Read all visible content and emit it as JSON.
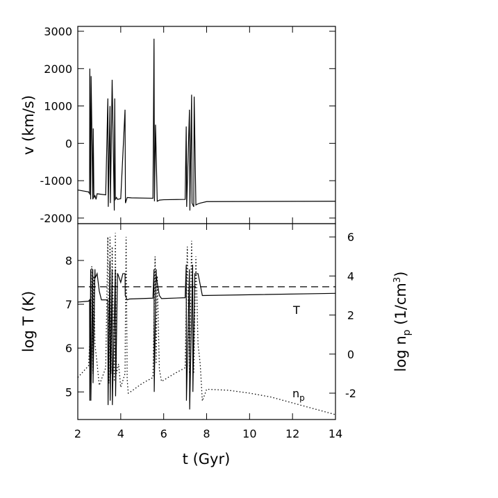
{
  "chart_data": [
    {
      "type": "line",
      "ylabel": "v (km/s)",
      "xlim": [
        2,
        14
      ],
      "xticks": [
        2,
        4,
        6,
        8,
        10,
        12,
        14
      ],
      "ylim": [
        -2150,
        3130
      ],
      "yticks": [
        -2000,
        -1000,
        0,
        1000,
        2000,
        3000
      ],
      "series": [
        {
          "color": "#000000",
          "linestyle": "solid",
          "x": [
            2,
            2.5,
            2.55,
            2.56,
            2.6,
            2.62,
            2.7,
            2.72,
            2.75,
            2.8,
            2.85,
            2.9,
            3.3,
            3.4,
            3.42,
            3.5,
            3.52,
            3.6,
            3.7,
            3.72,
            3.75,
            3.8,
            3.85,
            4.0,
            4.2,
            4.22,
            4.3,
            4.5,
            5.5,
            5.55,
            5.57,
            5.62,
            5.7,
            5.8,
            6.0,
            7.0,
            7.05,
            7.07,
            7.2,
            7.22,
            7.3,
            7.32,
            7.4,
            7.42,
            7.5,
            7.6,
            7.7,
            8,
            14
          ],
          "values": [
            -1250,
            -1300,
            -1350,
            2000,
            -1500,
            1800,
            -1500,
            400,
            -1450,
            -1400,
            -1500,
            -1350,
            -1380,
            1200,
            -1700,
            1000,
            -1600,
            1700,
            -1800,
            1200,
            -1500,
            -1450,
            -1500,
            -1480,
            900,
            -1600,
            -1450,
            -1460,
            -1470,
            2800,
            -1550,
            500,
            -1550,
            -1520,
            -1510,
            -1500,
            450,
            -1700,
            900,
            -1800,
            1300,
            -1600,
            -1700,
            1250,
            -1650,
            -1620,
            -1600,
            -1560,
            -1550
          ]
        }
      ]
    },
    {
      "type": "line",
      "xlabel": "t (Gyr)",
      "ylabel": "log T (K)",
      "y2label_parts": [
        "log n",
        "p",
        " (1/cm",
        "3",
        ")"
      ],
      "xlim": [
        2,
        14
      ],
      "xticks": [
        2,
        4,
        6,
        8,
        10,
        12,
        14
      ],
      "ylim": [
        4.37,
        8.84
      ],
      "yticks": [
        5,
        6,
        7,
        8
      ],
      "y2lim": [
        -3.35,
        6.68
      ],
      "y2ticks": [
        -2,
        0,
        2,
        4,
        6
      ],
      "annotations": [
        {
          "text": "T"
        },
        {
          "text": "n",
          "sub": "p"
        }
      ],
      "series": [
        {
          "color": "#000000",
          "linestyle": "solid",
          "x": [
            2,
            2.5,
            2.55,
            2.56,
            2.6,
            2.61,
            2.7,
            2.71,
            2.8,
            2.81,
            2.9,
            3.0,
            3.1,
            3.4,
            3.41,
            3.5,
            3.51,
            3.6,
            3.61,
            3.75,
            3.76,
            3.85,
            3.86,
            4.0,
            4.1,
            4.2,
            4.21,
            4.3,
            4.4,
            5.5,
            5.55,
            5.56,
            5.65,
            5.66,
            5.8,
            5.9,
            7.0,
            7.05,
            7.06,
            7.2,
            7.21,
            7.35,
            7.36,
            7.45,
            7.6,
            7.8,
            14
          ],
          "values": [
            7.05,
            7.07,
            7.1,
            4.8,
            7.8,
            4.8,
            7.8,
            5.2,
            7.8,
            7.6,
            7.7,
            7.3,
            7.1,
            7.1,
            4.7,
            8.0,
            4.8,
            7.8,
            4.7,
            7.8,
            4.9,
            7.7,
            7.7,
            7.5,
            7.7,
            7.7,
            7.2,
            7.1,
            7.12,
            7.14,
            7.8,
            5.0,
            7.8,
            7.6,
            7.2,
            7.13,
            7.15,
            7.9,
            4.8,
            7.8,
            4.6,
            7.9,
            5.0,
            7.7,
            7.7,
            7.2,
            7.25
          ]
        },
        {
          "color": "#000000",
          "linestyle": "dashed",
          "x": [
            2,
            14
          ],
          "values": [
            7.4,
            7.4
          ]
        },
        {
          "color": "#000000",
          "linestyle": "dotted",
          "axis": "y2",
          "x": [
            2,
            2.5,
            2.6,
            2.65,
            2.7,
            2.75,
            2.8,
            2.9,
            3.0,
            3.3,
            3.4,
            3.45,
            3.5,
            3.55,
            3.6,
            3.7,
            3.75,
            3.8,
            3.9,
            4.0,
            4.2,
            4.25,
            4.3,
            4.35,
            4.5,
            5.0,
            5.5,
            5.6,
            5.65,
            5.7,
            5.8,
            5.9,
            6.5,
            7.0,
            7.1,
            7.2,
            7.3,
            7.4,
            7.5,
            7.6,
            7.7,
            7.8,
            8.0,
            9,
            10,
            11,
            12,
            13,
            14
          ],
          "values": [
            -1.2,
            -0.6,
            1.5,
            4.5,
            -1.0,
            4.0,
            0.5,
            -0.5,
            -1.6,
            -0.7,
            6.0,
            -1.5,
            6.0,
            -1.0,
            5.5,
            -1.4,
            6.2,
            -1.0,
            -0.5,
            -1.7,
            -1.0,
            6.0,
            -1.3,
            -2.0,
            -1.9,
            -1.5,
            -1.2,
            5.0,
            -0.5,
            4.0,
            -0.8,
            -1.4,
            -1.0,
            -0.7,
            5.5,
            -1.0,
            5.8,
            -1.0,
            5.0,
            0.5,
            -0.5,
            -2.4,
            -1.8,
            -1.85,
            -2.0,
            -2.2,
            -2.5,
            -2.8,
            -3.1
          ]
        }
      ]
    }
  ]
}
